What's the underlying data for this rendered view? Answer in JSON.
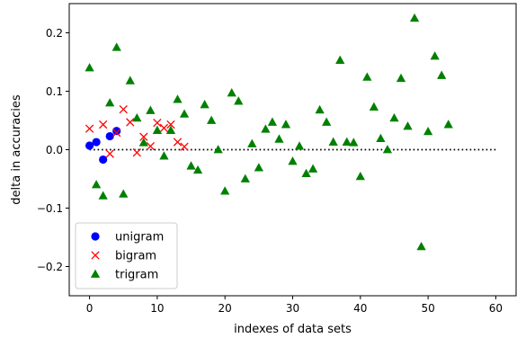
{
  "chart_data": {
    "type": "scatter",
    "title": "",
    "xlabel": "indexes of data sets",
    "ylabel": "delta in accuracies",
    "xlim": [
      -3,
      63
    ],
    "ylim": [
      -0.25,
      0.25
    ],
    "xticks": [
      0,
      10,
      20,
      30,
      40,
      50,
      60
    ],
    "yticks": [
      -0.2,
      -0.1,
      0.0,
      0.1,
      0.2
    ],
    "xtick_labels": [
      "0",
      "10",
      "20",
      "30",
      "40",
      "50",
      "60"
    ],
    "ytick_labels": [
      "−0.2",
      "−0.1",
      "0.0",
      "0.1",
      "0.2"
    ],
    "grid": false,
    "legend_position": "lower-left",
    "reference_line": {
      "y": 0,
      "style": "dotted",
      "x_range": [
        0,
        60
      ]
    },
    "series": [
      {
        "name": "unigram",
        "marker": "circle",
        "color": "#0000ff",
        "points": [
          [
            0,
            0.007
          ],
          [
            1,
            0.013
          ],
          [
            2,
            -0.017
          ],
          [
            3,
            0.023
          ],
          [
            4,
            0.032
          ]
        ]
      },
      {
        "name": "bigram",
        "marker": "x",
        "color": "#ff0000",
        "points": [
          [
            0,
            0.036
          ],
          [
            2,
            0.043
          ],
          [
            3,
            -0.007
          ],
          [
            4,
            0.029
          ],
          [
            5,
            0.069
          ],
          [
            6,
            0.047
          ],
          [
            7,
            -0.005
          ],
          [
            8,
            0.022
          ],
          [
            9,
            0.006
          ],
          [
            10,
            0.046
          ],
          [
            11,
            0.037
          ],
          [
            12,
            0.043
          ],
          [
            13,
            0.013
          ],
          [
            14,
            0.005
          ]
        ]
      },
      {
        "name": "trigram",
        "marker": "triangle",
        "color": "#008000",
        "points": [
          [
            0,
            0.14
          ],
          [
            1,
            -0.06
          ],
          [
            2,
            -0.079
          ],
          [
            3,
            0.08
          ],
          [
            4,
            0.175
          ],
          [
            5,
            -0.076
          ],
          [
            6,
            0.118
          ],
          [
            7,
            0.054
          ],
          [
            8,
            0.012
          ],
          [
            9,
            0.067
          ],
          [
            10,
            0.033
          ],
          [
            11,
            -0.011
          ],
          [
            12,
            0.033
          ],
          [
            13,
            0.086
          ],
          [
            14,
            0.061
          ],
          [
            15,
            -0.028
          ],
          [
            16,
            -0.035
          ],
          [
            17,
            0.077
          ],
          [
            18,
            0.05
          ],
          [
            19,
            0.0
          ],
          [
            20,
            -0.071
          ],
          [
            21,
            0.097
          ],
          [
            22,
            0.083
          ],
          [
            23,
            -0.05
          ],
          [
            24,
            0.01
          ],
          [
            25,
            -0.031
          ],
          [
            26,
            0.035
          ],
          [
            27,
            0.047
          ],
          [
            28,
            0.018
          ],
          [
            29,
            0.043
          ],
          [
            30,
            -0.02
          ],
          [
            31,
            0.006
          ],
          [
            32,
            -0.041
          ],
          [
            33,
            -0.033
          ],
          [
            34,
            0.068
          ],
          [
            35,
            0.047
          ],
          [
            36,
            0.013
          ],
          [
            37,
            0.153
          ],
          [
            38,
            0.013
          ],
          [
            39,
            0.012
          ],
          [
            40,
            -0.046
          ],
          [
            41,
            0.124
          ],
          [
            42,
            0.073
          ],
          [
            43,
            0.019
          ],
          [
            44,
            0.0
          ],
          [
            45,
            0.054
          ],
          [
            46,
            0.122
          ],
          [
            47,
            0.04
          ],
          [
            48,
            0.225
          ],
          [
            49,
            -0.166
          ],
          [
            50,
            0.031
          ],
          [
            51,
            0.16
          ],
          [
            52,
            0.127
          ],
          [
            53,
            0.043
          ]
        ]
      }
    ]
  }
}
